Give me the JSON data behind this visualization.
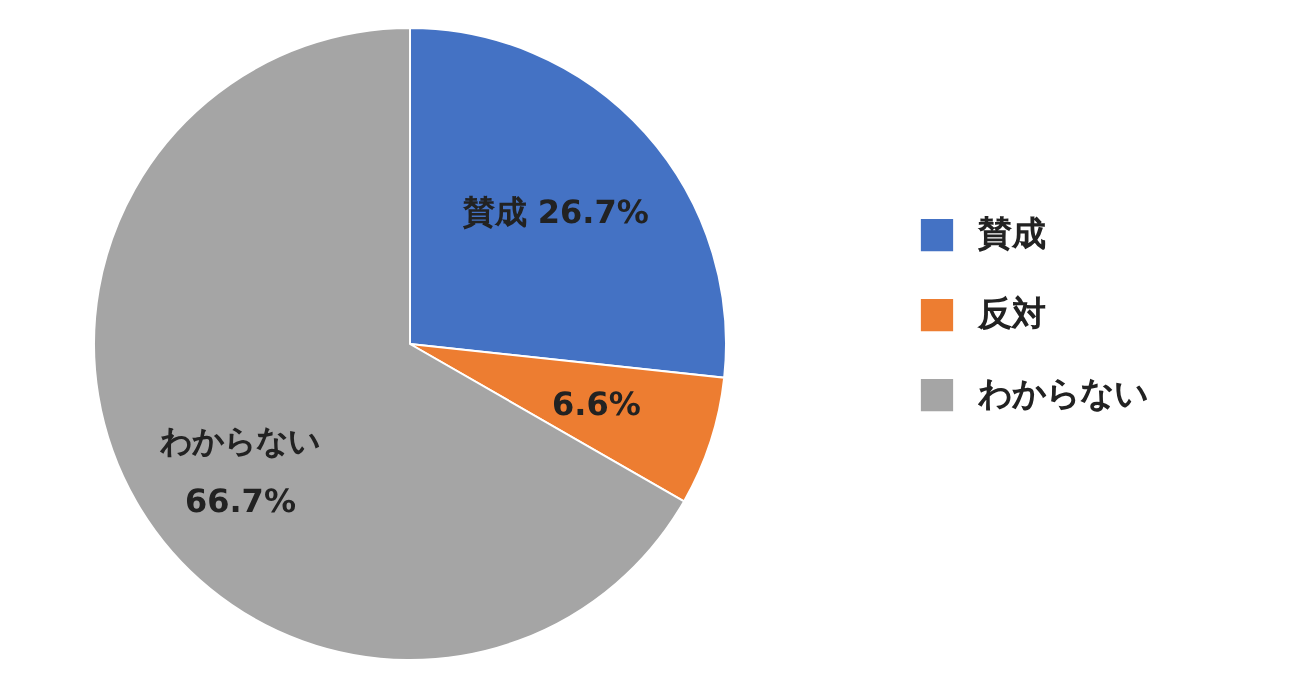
{
  "chart_data": {
    "type": "pie",
    "categories": [
      "賛成",
      "反対",
      "わからない"
    ],
    "values": [
      26.7,
      6.6,
      66.7
    ],
    "colors": [
      "#4472c4",
      "#ed7d31",
      "#a5a5a5"
    ],
    "value_labels": [
      "賛成 26.7%",
      "6.6%",
      "わからない 66.7%"
    ],
    "legend": "right"
  }
}
